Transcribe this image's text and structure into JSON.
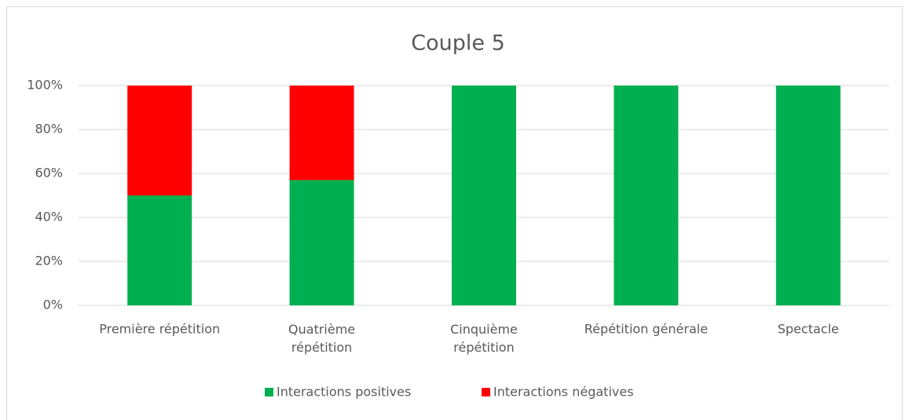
{
  "chart_data": {
    "type": "stacked_bar",
    "title": "Couple 5",
    "categories": [
      "Première répétition",
      "Quatrième\nrépétition",
      "Cinquième\nrépétition",
      "Répétition générale",
      "Spectacle"
    ],
    "series": [
      {
        "name": "Interactions positives",
        "color": "#00b050",
        "values": [
          50,
          57,
          100,
          100,
          100
        ]
      },
      {
        "name": "Interactions négatives",
        "color": "#ff0000",
        "values": [
          50,
          43,
          0,
          0,
          0
        ]
      }
    ],
    "ylim": [
      0,
      100
    ],
    "yticks": [
      {
        "value": 0,
        "label": "0%"
      },
      {
        "value": 20,
        "label": "20%"
      },
      {
        "value": 40,
        "label": "40%"
      },
      {
        "value": 60,
        "label": "60%"
      },
      {
        "value": 80,
        "label": "80%"
      },
      {
        "value": 100,
        "label": "100%"
      }
    ],
    "grid": true,
    "legend": "bottom"
  }
}
